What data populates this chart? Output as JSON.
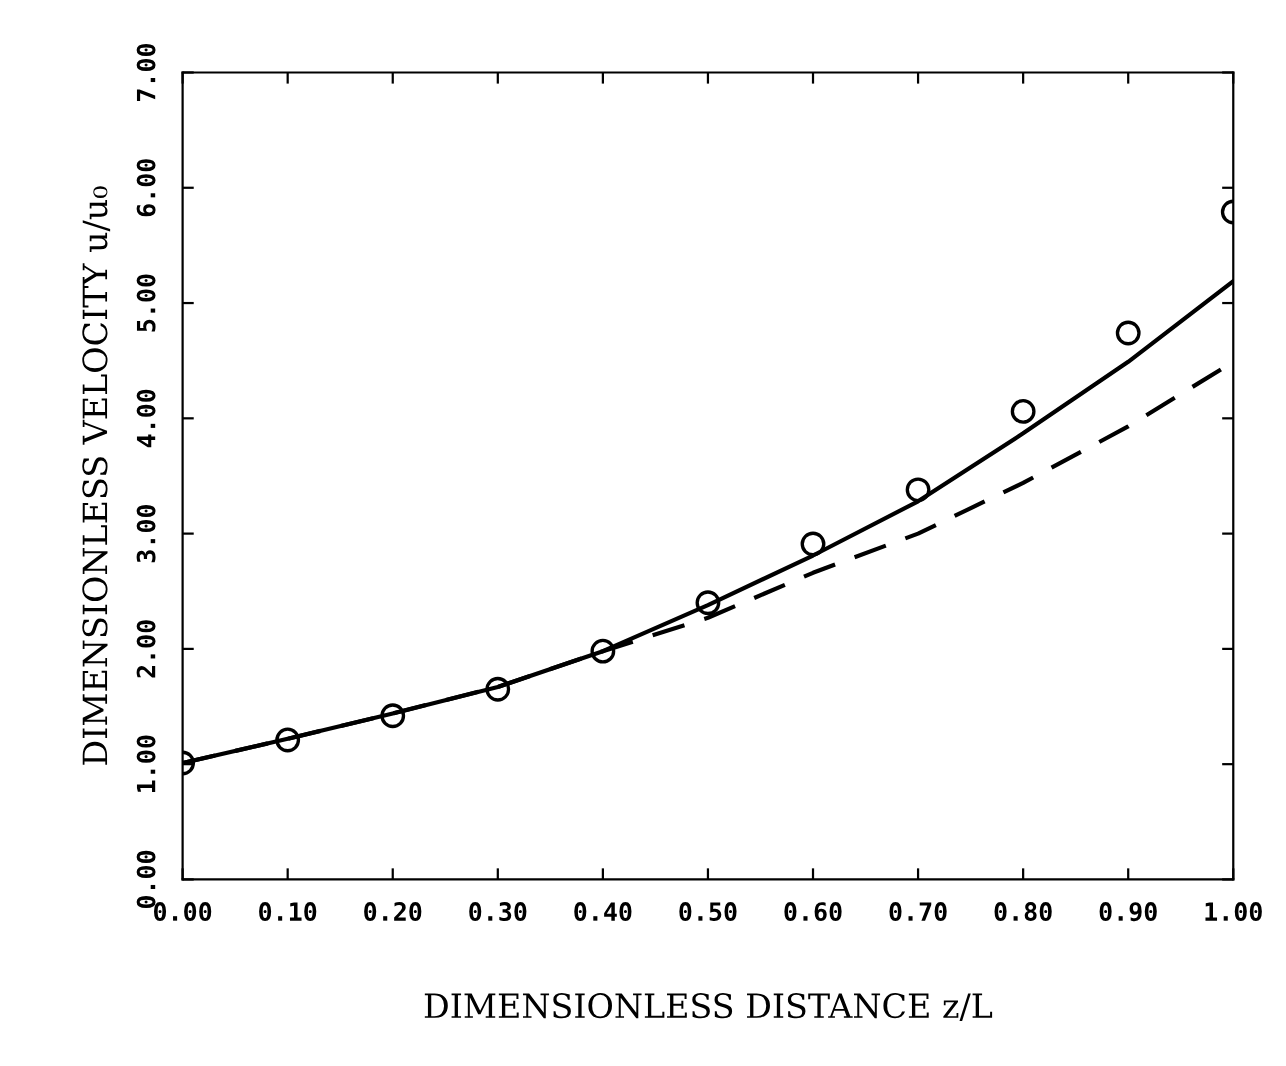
{
  "chart_data": {
    "type": "line",
    "xlabel": "DIMENSIONLESS DISTANCE z/L",
    "ylabel": "DIMENSIONLESS VELOCITY u/u₀",
    "x": [
      0,
      0.1,
      0.2,
      0.3,
      0.4,
      0.5,
      0.6,
      0.7,
      0.8,
      0.9,
      1.0
    ],
    "series": [
      {
        "type": "scatter",
        "color": "#000000",
        "marker": "circle",
        "values": [
          1.01,
          1.21,
          1.42,
          1.65,
          1.98,
          2.4,
          2.91,
          3.38,
          4.06,
          4.74,
          5.79
        ]
      },
      {
        "color": "#000000",
        "line_style": "solid",
        "values": [
          1.01,
          1.22,
          1.44,
          1.67,
          1.98,
          2.38,
          2.81,
          3.28,
          3.87,
          4.49,
          5.19
        ]
      },
      {
        "color": "#000000",
        "line_style": "dashed",
        "values": [
          1.01,
          1.22,
          1.44,
          1.67,
          1.98,
          2.27,
          2.66,
          3.0,
          3.44,
          3.93,
          4.49
        ]
      }
    ],
    "xlim": [
      0,
      1
    ],
    "ylim": [
      0,
      7
    ],
    "xticks": [
      {
        "value": 0,
        "label": "0.00"
      },
      {
        "value": 0.1,
        "label": "0.10"
      },
      {
        "value": 0.2,
        "label": "0.20"
      },
      {
        "value": 0.3,
        "label": "0.30"
      },
      {
        "value": 0.4,
        "label": "0.40"
      },
      {
        "value": 0.5,
        "label": "0.50"
      },
      {
        "value": 0.6,
        "label": "0.60"
      },
      {
        "value": 0.7,
        "label": "0.70"
      },
      {
        "value": 0.8,
        "label": "0.80"
      },
      {
        "value": 0.9,
        "label": "0.90"
      },
      {
        "value": 1.0,
        "label": "1.00"
      }
    ],
    "yticks": [
      {
        "value": 0,
        "label": "0.00"
      },
      {
        "value": 1,
        "label": "1.00"
      },
      {
        "value": 2,
        "label": "2.00"
      },
      {
        "value": 3,
        "label": "3.00"
      },
      {
        "value": 4,
        "label": "4.00"
      },
      {
        "value": 5,
        "label": "5.00"
      },
      {
        "value": 6,
        "label": "6.00"
      },
      {
        "value": 7,
        "label": "7.00"
      }
    ],
    "grid": false,
    "legend": false
  }
}
